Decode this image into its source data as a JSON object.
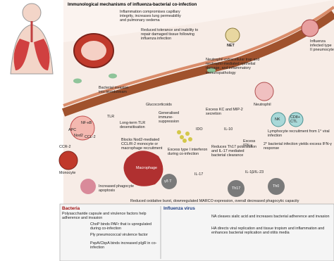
{
  "title": "Immunological mechanisms of influenza-bacterial co-infection",
  "annotations": {
    "capillary": "Inflammation compromises capillary integrity, increases lung permeability and pulmonary oedema",
    "tolerance": "Reduced tolerance and inability to repair damaged tissue following influenza infection",
    "net_label": "NET",
    "net_text": "Neutrophil extracellular trap and neutrophil-mediated epithelial damage, and inflammatory immunopathology",
    "pneumocyte": "Influenza infected type II pneumocyte",
    "invasion": "Bacterial invasion into bloodstream",
    "glucocorticoids": "Glucocorticoids",
    "suppression": "Generalised immune-suppression",
    "kc": "Excess KC and MIP-2 secretion",
    "neutrophil": "Neutrophil",
    "tlr": "TLR",
    "tlr_desens": "Long-term TLR desensitisation",
    "apc": "APC",
    "nfkb": "NF-κB",
    "nod2": "Nod2",
    "ccl2": "CCL-2",
    "ccr2": "CCR-2",
    "blocks": "Blocks Nod2-mediated CCL/R-2 monocyte or macrophage recruitment",
    "ido": "IDO",
    "il10": "IL-10",
    "nk": "NK",
    "ctl": "CD8+ CTL",
    "lymph": "Lymphocyte recruitment from 1° viral infection",
    "second": "2° bacterial infection yields excess IFN-γ response",
    "ifng": "Excess IFN-γ",
    "type1": "Excess type I interferon during co-infection",
    "th17red": "Reduces Th17 polarisation and IL-17 mediated bacterial clearance",
    "il1": "IL-1β/IL-23",
    "monocyte": "Monocyte",
    "macrophage": "Macrophage",
    "gdt": "γδ T",
    "il17": "IL-17",
    "th17": "Th17",
    "th0": "Th0",
    "apoptosis": "Increased phagocyte apoptosis",
    "oxidative": "Reduced oxidative burst, downregulated MARCO expression, overall decreased phagocytic capacity"
  },
  "bacteria_panel": {
    "title": "Bacteria",
    "items": [
      "Polysaccharide capsule and virulence factors help adherence and invasion",
      "ChoP binds PAFr that is upregulated during co-infection",
      "Ply pneumococcal virulence factor",
      "PspA/CbpA binds increased pIgR in co-infection"
    ]
  },
  "virus_panel": {
    "title": "Influenza virus",
    "items": [
      "NA cleaves sialic acid and increases bacterial adherence and invasion",
      "HA directs viral replication and tissue tropism and inflammation and enhances bacterial replication and otitis media"
    ]
  }
}
